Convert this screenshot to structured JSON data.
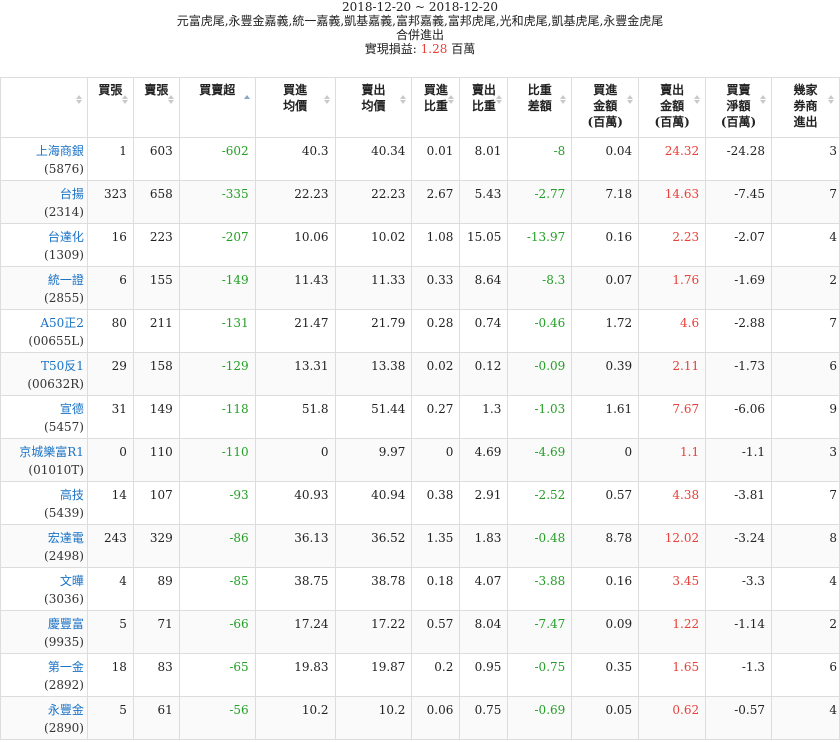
{
  "header": {
    "date_range": "2018-12-20 ~ 2018-12-20",
    "brokers": "元富虎尾,永豐金嘉義,統一嘉義,凱基嘉義,富邦嘉義,富邦虎尾,光和虎尾,凱基虎尾,永豐金虎尾",
    "subtitle": "合併進出",
    "realized_label": "實現損益:",
    "realized_value": "1.28",
    "realized_unit": "百萬"
  },
  "columns": [
    {
      "key": "name",
      "lines": [
        ""
      ],
      "sort": "none"
    },
    {
      "key": "buy",
      "lines": [
        "買張"
      ],
      "sort": "none"
    },
    {
      "key": "sell",
      "lines": [
        "賣張"
      ],
      "sort": "none"
    },
    {
      "key": "net",
      "lines": [
        "買賣超"
      ],
      "sort": "asc"
    },
    {
      "key": "buy_avg",
      "lines": [
        "買進",
        "均價"
      ],
      "sort": "none"
    },
    {
      "key": "sell_avg",
      "lines": [
        "賣出",
        "均價"
      ],
      "sort": "none"
    },
    {
      "key": "buy_ratio",
      "lines": [
        "買進",
        "比重"
      ],
      "sort": "none"
    },
    {
      "key": "sell_ratio",
      "lines": [
        "賣出",
        "比重"
      ],
      "sort": "none"
    },
    {
      "key": "ratio_diff",
      "lines": [
        "比重",
        "差額"
      ],
      "sort": "none"
    },
    {
      "key": "buy_amt",
      "lines": [
        "買進",
        "金額",
        "(百萬)"
      ],
      "sort": "none"
    },
    {
      "key": "sell_amt",
      "lines": [
        "賣出",
        "金額",
        "(百萬)"
      ],
      "sort": "none"
    },
    {
      "key": "net_amt",
      "lines": [
        "買賣",
        "淨額",
        "(百萬)"
      ],
      "sort": "none"
    },
    {
      "key": "brokers",
      "lines": [
        "幾家",
        "券商",
        "進出"
      ],
      "sort": "none"
    }
  ],
  "rows": [
    {
      "name": "上海商銀",
      "code": "(5876)",
      "buy": "1",
      "sell": "603",
      "net": "-602",
      "buy_avg": "40.3",
      "sell_avg": "40.34",
      "buy_ratio": "0.01",
      "sell_ratio": "8.01",
      "ratio_diff": "-8",
      "buy_amt": "0.04",
      "sell_amt": "24.32",
      "net_amt": "-24.28",
      "brokers": "3"
    },
    {
      "name": "台揚",
      "code": "(2314)",
      "buy": "323",
      "sell": "658",
      "net": "-335",
      "buy_avg": "22.23",
      "sell_avg": "22.23",
      "buy_ratio": "2.67",
      "sell_ratio": "5.43",
      "ratio_diff": "-2.77",
      "buy_amt": "7.18",
      "sell_amt": "14.63",
      "net_amt": "-7.45",
      "brokers": "7"
    },
    {
      "name": "台達化",
      "code": "(1309)",
      "buy": "16",
      "sell": "223",
      "net": "-207",
      "buy_avg": "10.06",
      "sell_avg": "10.02",
      "buy_ratio": "1.08",
      "sell_ratio": "15.05",
      "ratio_diff": "-13.97",
      "buy_amt": "0.16",
      "sell_amt": "2.23",
      "net_amt": "-2.07",
      "brokers": "4"
    },
    {
      "name": "統一證",
      "code": "(2855)",
      "buy": "6",
      "sell": "155",
      "net": "-149",
      "buy_avg": "11.43",
      "sell_avg": "11.33",
      "buy_ratio": "0.33",
      "sell_ratio": "8.64",
      "ratio_diff": "-8.3",
      "buy_amt": "0.07",
      "sell_amt": "1.76",
      "net_amt": "-1.69",
      "brokers": "2"
    },
    {
      "name": "A50正2",
      "code": "(00655L)",
      "buy": "80",
      "sell": "211",
      "net": "-131",
      "buy_avg": "21.47",
      "sell_avg": "21.79",
      "buy_ratio": "0.28",
      "sell_ratio": "0.74",
      "ratio_diff": "-0.46",
      "buy_amt": "1.72",
      "sell_amt": "4.6",
      "net_amt": "-2.88",
      "brokers": "7"
    },
    {
      "name": "T50反1",
      "code": "(00632R)",
      "buy": "29",
      "sell": "158",
      "net": "-129",
      "buy_avg": "13.31",
      "sell_avg": "13.38",
      "buy_ratio": "0.02",
      "sell_ratio": "0.12",
      "ratio_diff": "-0.09",
      "buy_amt": "0.39",
      "sell_amt": "2.11",
      "net_amt": "-1.73",
      "brokers": "6"
    },
    {
      "name": "宣德",
      "code": "(5457)",
      "buy": "31",
      "sell": "149",
      "net": "-118",
      "buy_avg": "51.8",
      "sell_avg": "51.44",
      "buy_ratio": "0.27",
      "sell_ratio": "1.3",
      "ratio_diff": "-1.03",
      "buy_amt": "1.61",
      "sell_amt": "7.67",
      "net_amt": "-6.06",
      "brokers": "9"
    },
    {
      "name": "京城樂富R1",
      "code": "(01010T)",
      "buy": "0",
      "sell": "110",
      "net": "-110",
      "buy_avg": "0",
      "sell_avg": "9.97",
      "buy_ratio": "0",
      "sell_ratio": "4.69",
      "ratio_diff": "-4.69",
      "buy_amt": "0",
      "sell_amt": "1.1",
      "net_amt": "-1.1",
      "brokers": "3"
    },
    {
      "name": "高技",
      "code": "(5439)",
      "buy": "14",
      "sell": "107",
      "net": "-93",
      "buy_avg": "40.93",
      "sell_avg": "40.94",
      "buy_ratio": "0.38",
      "sell_ratio": "2.91",
      "ratio_diff": "-2.52",
      "buy_amt": "0.57",
      "sell_amt": "4.38",
      "net_amt": "-3.81",
      "brokers": "7"
    },
    {
      "name": "宏達電",
      "code": "(2498)",
      "buy": "243",
      "sell": "329",
      "net": "-86",
      "buy_avg": "36.13",
      "sell_avg": "36.52",
      "buy_ratio": "1.35",
      "sell_ratio": "1.83",
      "ratio_diff": "-0.48",
      "buy_amt": "8.78",
      "sell_amt": "12.02",
      "net_amt": "-3.24",
      "brokers": "8"
    },
    {
      "name": "文曄",
      "code": "(3036)",
      "buy": "4",
      "sell": "89",
      "net": "-85",
      "buy_avg": "38.75",
      "sell_avg": "38.78",
      "buy_ratio": "0.18",
      "sell_ratio": "4.07",
      "ratio_diff": "-3.88",
      "buy_amt": "0.16",
      "sell_amt": "3.45",
      "net_amt": "-3.3",
      "brokers": "4"
    },
    {
      "name": "慶豐富",
      "code": "(9935)",
      "buy": "5",
      "sell": "71",
      "net": "-66",
      "buy_avg": "17.24",
      "sell_avg": "17.22",
      "buy_ratio": "0.57",
      "sell_ratio": "8.04",
      "ratio_diff": "-7.47",
      "buy_amt": "0.09",
      "sell_amt": "1.22",
      "net_amt": "-1.14",
      "brokers": "2"
    },
    {
      "name": "第一金",
      "code": "(2892)",
      "buy": "18",
      "sell": "83",
      "net": "-65",
      "buy_avg": "19.83",
      "sell_avg": "19.87",
      "buy_ratio": "0.2",
      "sell_ratio": "0.95",
      "ratio_diff": "-0.75",
      "buy_amt": "0.35",
      "sell_amt": "1.65",
      "net_amt": "-1.3",
      "brokers": "6"
    },
    {
      "name": "永豐金",
      "code": "(2890)",
      "buy": "5",
      "sell": "61",
      "net": "-56",
      "buy_avg": "10.2",
      "sell_avg": "10.2",
      "buy_ratio": "0.06",
      "sell_ratio": "0.75",
      "ratio_diff": "-0.69",
      "buy_amt": "0.05",
      "sell_amt": "0.62",
      "net_amt": "-0.57",
      "brokers": "4"
    }
  ],
  "colors": {
    "positive": "#e8403a",
    "negative": "#23a025",
    "link": "#1a73c7",
    "border": "#dddddd"
  }
}
